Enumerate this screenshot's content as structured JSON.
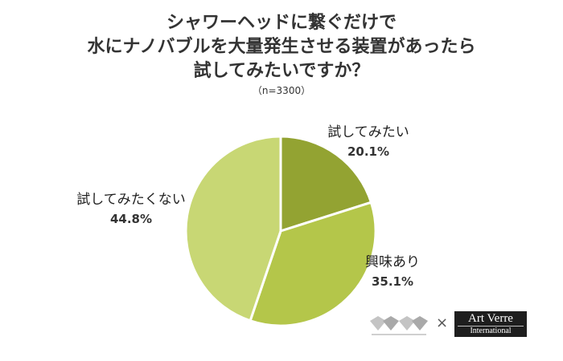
{
  "title_lines": [
    "シャワーヘッドに繋ぐだけで",
    "水にナノバブルを大量発生させる装置があったら",
    "試してみたいですか？"
  ],
  "sample_size": "（n=3300）",
  "colors": {
    "slice_1": "#93a332",
    "slice_2": "#b4c64a",
    "slice_3": "#c8d774",
    "border": "#ffffff"
  },
  "chart_data": {
    "type": "pie",
    "title": "シャワーヘッドに繋ぐだけで水にナノバブルを大量発生させる装置があったら試してみたいですか？",
    "subtitle": "（n=3300）",
    "start_angle": "12 o'clock",
    "direction": "clockwise",
    "slices": [
      {
        "label": "試してみたい",
        "value": 20.1,
        "value_text": "20.1%",
        "color": "#93a332"
      },
      {
        "label": "興味あり",
        "value": 35.1,
        "value_text": "35.1%",
        "color": "#b4c64a"
      },
      {
        "label": "試してみたくない",
        "value": 44.8,
        "value_text": "44.8%",
        "color": "#c8d774"
      }
    ]
  },
  "logos": {
    "brand_mark_icon": "double-heart-logo-icon",
    "times_sign": "×",
    "partner_line1": "Art Verre",
    "partner_line2": "International"
  }
}
